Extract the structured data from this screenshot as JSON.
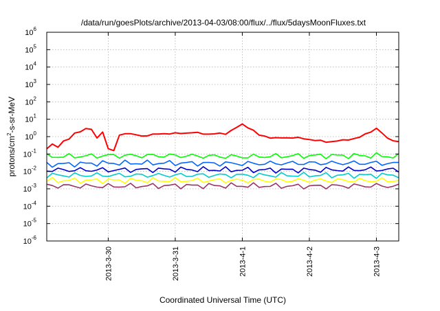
{
  "chart_data": {
    "type": "line",
    "title": "/data/run/goesPlots/archive/2013-04-03/08:00/flux/../flux/5daysMoonFluxes.txt",
    "xlabel": "Coordinated Universal Time (UTC)",
    "ylabel_parts": [
      "protons/cm",
      "2",
      "-s-sr-MeV"
    ],
    "y_scale": "log",
    "ylim_exponent": [
      -6,
      6
    ],
    "y_ticks": [
      {
        "base": "10",
        "exp": "-6",
        "value": 1e-06
      },
      {
        "base": "10",
        "exp": "-5",
        "value": 1e-05
      },
      {
        "base": "10",
        "exp": "-4",
        "value": 0.0001
      },
      {
        "base": "10",
        "exp": "-3",
        "value": 0.001
      },
      {
        "base": "10",
        "exp": "-2",
        "value": 0.01
      },
      {
        "base": "10",
        "exp": "-1",
        "value": 0.1
      },
      {
        "base": "10",
        "exp": "0",
        "value": 1
      },
      {
        "base": "10",
        "exp": "1",
        "value": 10
      },
      {
        "base": "10",
        "exp": "2",
        "value": 100
      },
      {
        "base": "10",
        "exp": "3",
        "value": 1000
      },
      {
        "base": "10",
        "exp": "4",
        "value": 10000
      },
      {
        "base": "10",
        "exp": "5",
        "value": 100000
      },
      {
        "base": "10",
        "exp": "6",
        "value": 1000000
      }
    ],
    "xlim": [
      "2013-03-29T02:00",
      "2013-04-03T08:00"
    ],
    "x_ticks": [
      {
        "label": "2013-3-30",
        "date": "2013-03-30T00:00"
      },
      {
        "label": "2013-3-31",
        "date": "2013-03-31T00:00"
      },
      {
        "label": "2013-4-1",
        "date": "2013-04-01T00:00"
      },
      {
        "label": "2013-4-2",
        "date": "2013-04-02T00:00"
      },
      {
        "label": "2013-4-3",
        "date": "2013-04-03T00:00"
      }
    ],
    "grid": true,
    "legend": "none",
    "series": [
      {
        "color": "#ff0000",
        "times": [
          "2013-03-29T02:00",
          "2013-03-29T03:00",
          "2013-03-29T04:00",
          "2013-03-29T05:00",
          "2013-03-29T06:00",
          "2013-03-29T07:00",
          "2013-03-29T08:00",
          "2013-03-29T09:00",
          "2013-03-29T10:00",
          "2013-03-29T11:00",
          "2013-03-29T12:00",
          "2013-03-29T13:00",
          "2013-03-29T14:00",
          "2013-03-29T15:00",
          "2013-03-29T16:00",
          "2013-03-29T17:00",
          "2013-03-29T18:00",
          "2013-03-29T19:00",
          "2013-03-29T20:00",
          "2013-03-29T21:00",
          "2013-03-29T22:00",
          "2013-03-29T23:00",
          "2013-03-30T00:00",
          "2013-03-30T01:00",
          "2013-03-30T02:00",
          "2013-03-30T03:00",
          "2013-03-30T04:00",
          "2013-03-30T05:00",
          "2013-03-30T06:00",
          "2013-03-30T08:00",
          "2013-03-30T12:00",
          "2013-03-30T16:00",
          "2013-03-30T20:00",
          "2013-03-31T00:00",
          "2013-03-31T06:00",
          "2013-03-31T12:00",
          "2013-03-31T18:00",
          "2013-04-01T00:00",
          "2013-04-01T03:00",
          "2013-04-01T06:00",
          "2013-04-01T12:00",
          "2013-04-01T18:00",
          "2013-04-02T00:00",
          "2013-04-02T06:00",
          "2013-04-02T12:00",
          "2013-04-02T18:00",
          "2013-04-03T00:00",
          "2013-04-03T04:00",
          "2013-04-03T08:00"
        ],
        "values": [
          0.2,
          1.8,
          0.35,
          0.12,
          0.25,
          0.15,
          0.6,
          18,
          0.7,
          2.5,
          1.5,
          4,
          2,
          6,
          3,
          5,
          2.5,
          1.5,
          0.8,
          0.4,
          2,
          0.3,
          0.2,
          0.5,
          0.15,
          20,
          1.2,
          1.3,
          1.6,
          1.4,
          1.1,
          1.3,
          1.5,
          1.5,
          1.7,
          1.4,
          1.5,
          5,
          3,
          1.2,
          0.8,
          0.9,
          0.7,
          0.5,
          0.6,
          0.9,
          3,
          0.8,
          0.5
        ]
      },
      {
        "color": "#00ff00",
        "times": [
          "2013-03-29T02:00",
          "2013-03-30T00:00",
          "2013-03-31T00:00",
          "2013-04-01T00:00",
          "2013-04-02T00:00",
          "2013-04-03T00:00",
          "2013-04-03T08:00"
        ],
        "values": [
          0.07,
          0.08,
          0.08,
          0.07,
          0.08,
          0.08,
          0.07
        ]
      },
      {
        "color": "#0066ff",
        "times": [
          "2013-03-29T02:00",
          "2013-03-30T00:00",
          "2013-03-31T00:00",
          "2013-04-01T00:00",
          "2013-04-02T00:00",
          "2013-04-03T00:00",
          "2013-04-03T08:00"
        ],
        "values": [
          0.025,
          0.03,
          0.03,
          0.028,
          0.03,
          0.03,
          0.028
        ]
      },
      {
        "color": "#0000cc",
        "times": [
          "2013-03-29T02:00",
          "2013-03-30T00:00",
          "2013-03-31T00:00",
          "2013-04-01T00:00",
          "2013-04-02T00:00",
          "2013-04-03T00:00",
          "2013-04-03T08:00"
        ],
        "values": [
          0.012,
          0.012,
          0.013,
          0.012,
          0.012,
          0.013,
          0.012
        ]
      },
      {
        "color": "#00cccc",
        "times": [
          "2013-03-29T02:00",
          "2013-03-30T00:00",
          "2013-03-31T00:00",
          "2013-04-01T00:00",
          "2013-04-02T00:00",
          "2013-04-03T00:00",
          "2013-04-03T08:00"
        ],
        "values": [
          0.006,
          0.006,
          0.006,
          0.006,
          0.006,
          0.006,
          0.006
        ]
      },
      {
        "color": "#ffff00",
        "times": [
          "2013-03-29T02:00",
          "2013-03-30T00:00",
          "2013-03-31T00:00",
          "2013-04-01T00:00",
          "2013-04-02T00:00",
          "2013-04-03T00:00",
          "2013-04-03T08:00"
        ],
        "values": [
          0.003,
          0.003,
          0.003,
          0.003,
          0.003,
          0.003,
          0.003
        ]
      },
      {
        "color": "#993366",
        "times": [
          "2013-03-29T02:00",
          "2013-03-30T00:00",
          "2013-03-31T00:00",
          "2013-04-01T00:00",
          "2013-04-02T00:00",
          "2013-04-03T00:00",
          "2013-04-03T08:00"
        ],
        "values": [
          0.0015,
          0.0014,
          0.0015,
          0.0015,
          0.0014,
          0.0015,
          0.0014
        ]
      }
    ]
  }
}
